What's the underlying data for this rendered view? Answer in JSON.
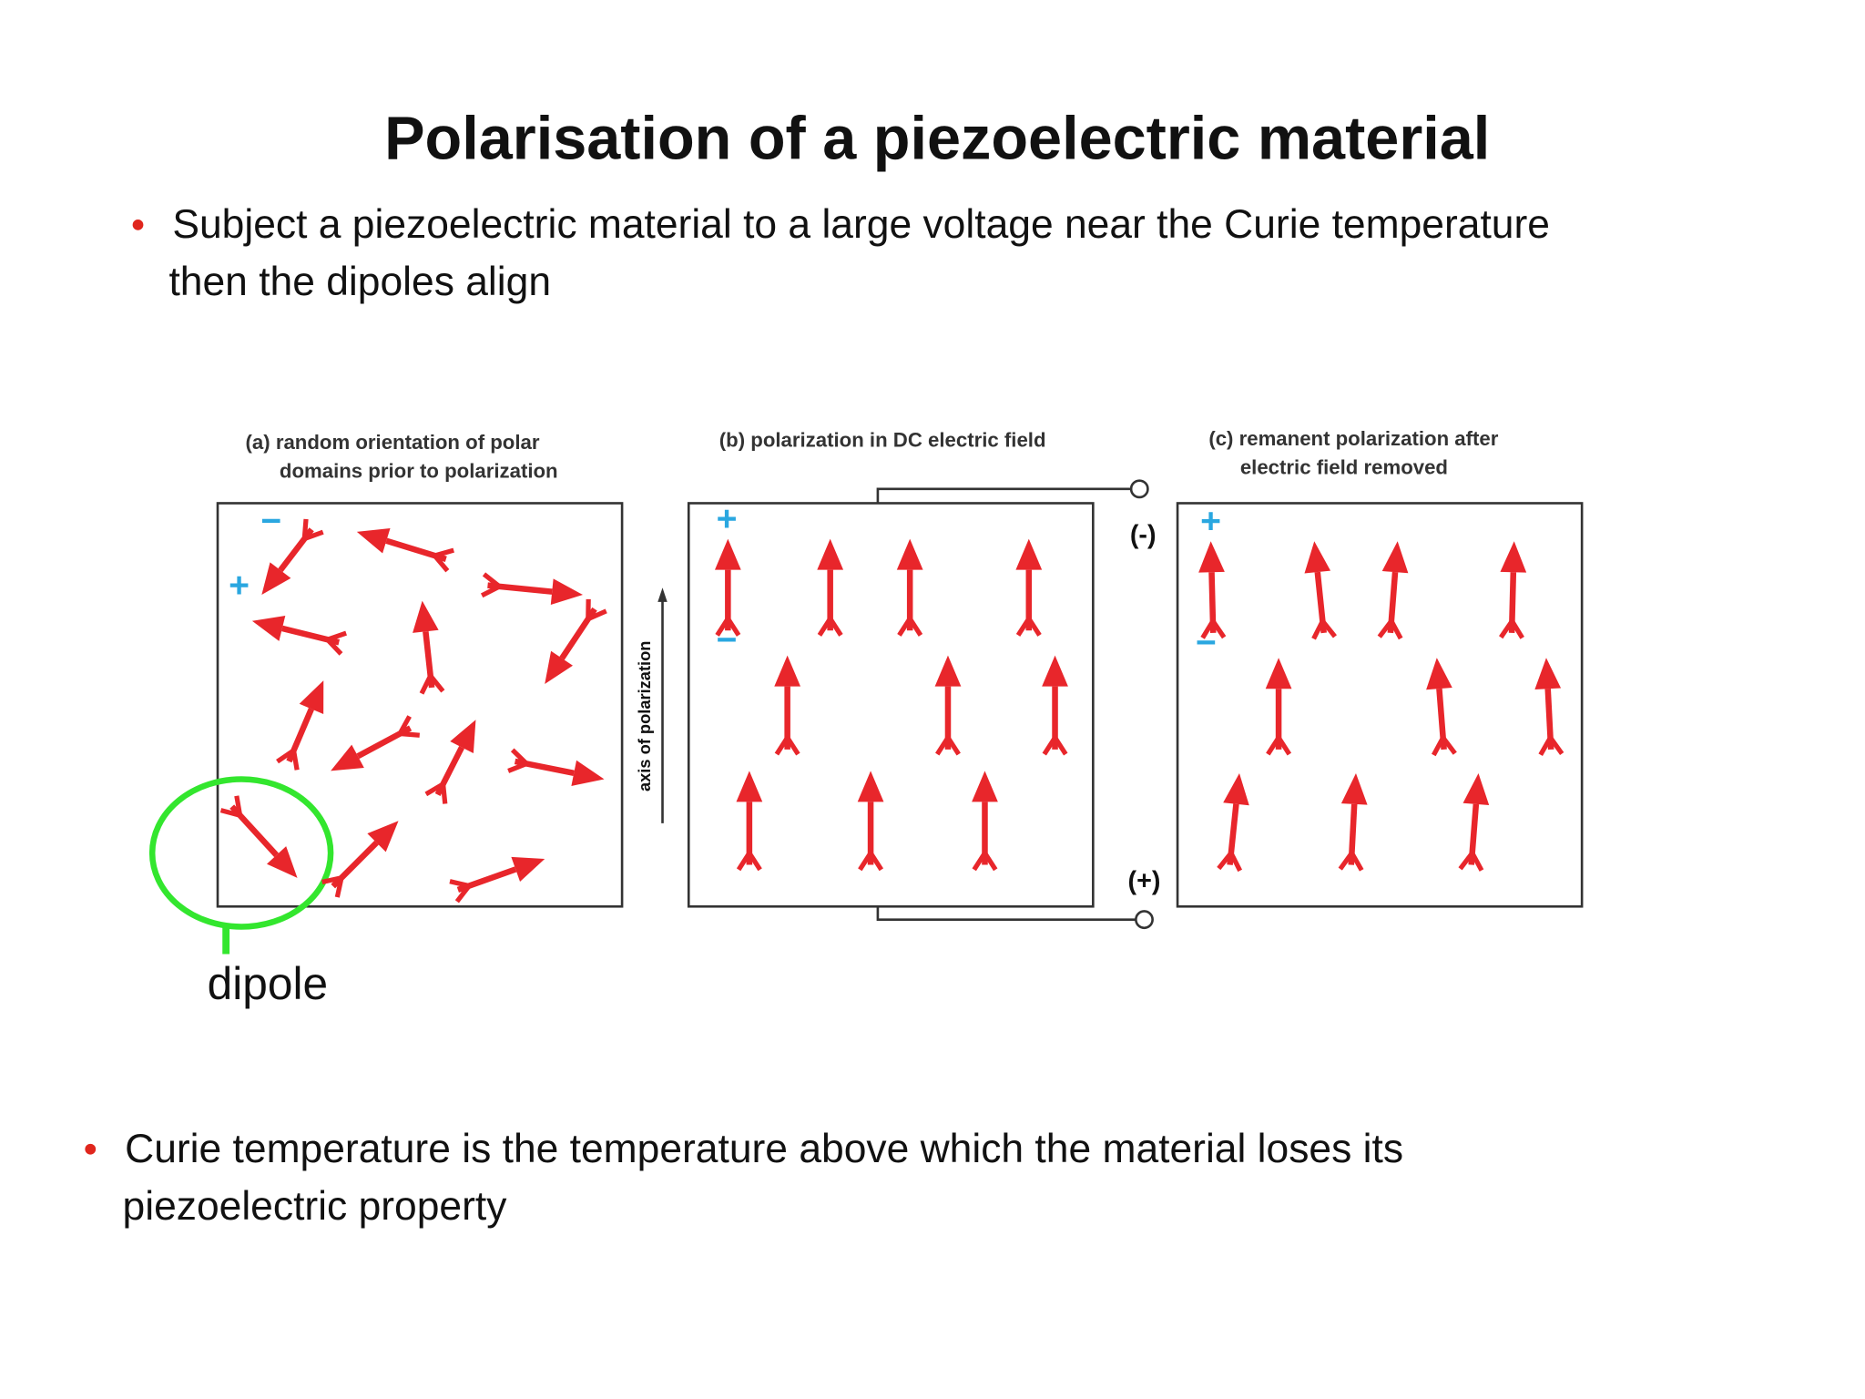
{
  "header": {
    "title": "Polarisation of a piezoelectric material"
  },
  "bullets": [
    {
      "lines": [
        "Subject a piezoelectric material to a large voltage near the Curie temperature",
        "then the dipoles align"
      ]
    },
    {
      "lines": [
        "Curie temperature is the temperature above which the material loses its",
        "piezoelectric property"
      ]
    }
  ],
  "figure": {
    "panels": [
      {
        "caption": [
          "(a) random orientation of polar",
          "domains prior to polarization"
        ],
        "signs": [
          "−",
          "+"
        ]
      },
      {
        "caption": [
          "(b) polarization in DC electric field"
        ],
        "signs": [
          "+",
          "−"
        ]
      },
      {
        "caption": [
          "(c) remanent polarization after",
          "electric field removed"
        ],
        "signs": [
          "+",
          "−"
        ]
      }
    ],
    "axis_label": "axis of polarization",
    "terminals": [
      "(-)",
      "(+)"
    ],
    "callout": "dipole"
  }
}
